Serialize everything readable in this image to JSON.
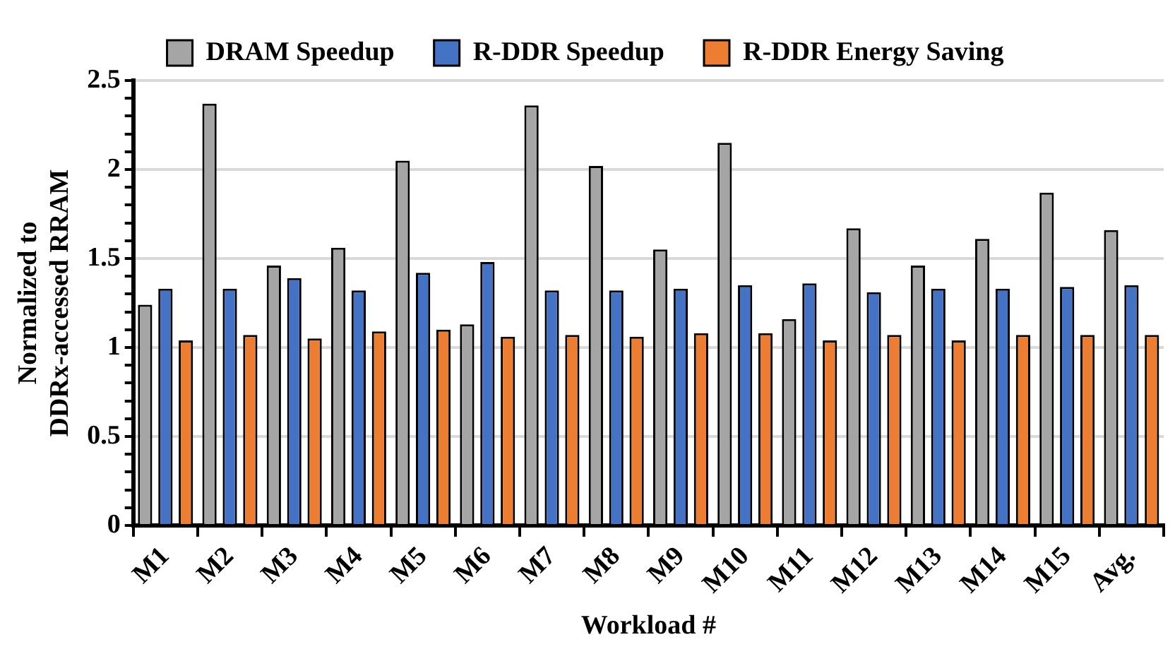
{
  "chart_data": {
    "type": "bar",
    "xlabel": "Workload #",
    "ylabel": "Normalized to\nDDRx-accessed RRAM",
    "categories": [
      "M1",
      "M2",
      "M3",
      "M4",
      "M5",
      "M6",
      "M7",
      "M8",
      "M9",
      "M10",
      "M11",
      "M12",
      "M13",
      "M14",
      "M15",
      "Avg."
    ],
    "series": [
      {
        "name": "DRAM Speedup",
        "color": "#a5a5a5",
        "values": [
          1.24,
          2.37,
          1.46,
          1.56,
          2.05,
          1.13,
          2.36,
          2.02,
          1.55,
          2.15,
          1.16,
          1.67,
          1.46,
          1.61,
          1.87,
          1.66
        ]
      },
      {
        "name": "R-DDR Speedup",
        "color": "#4472c4",
        "values": [
          1.33,
          1.33,
          1.39,
          1.32,
          1.42,
          1.48,
          1.32,
          1.32,
          1.33,
          1.35,
          1.36,
          1.31,
          1.33,
          1.33,
          1.34,
          1.35
        ]
      },
      {
        "name": "R-DDR Energy Saving",
        "color": "#ed7d31",
        "values": [
          1.04,
          1.07,
          1.05,
          1.09,
          1.1,
          1.06,
          1.07,
          1.06,
          1.08,
          1.08,
          1.04,
          1.07,
          1.04,
          1.07,
          1.07,
          1.07
        ]
      }
    ],
    "ylim": [
      0,
      2.5
    ],
    "yticks": [
      0,
      {
        "value": 0.1,
        "label": null
      },
      {
        "value": 0.2,
        "label": null
      },
      {
        "value": 0.3,
        "label": null
      },
      {
        "value": 0.4,
        "label": null
      },
      0.5,
      {
        "value": 0.6,
        "label": null
      },
      {
        "value": 0.7,
        "label": null
      },
      {
        "value": 0.8,
        "label": null
      },
      {
        "value": 0.9,
        "label": null
      },
      1,
      {
        "value": 1.1,
        "label": null
      },
      {
        "value": 1.2,
        "label": null
      },
      {
        "value": 1.3,
        "label": null
      },
      {
        "value": 1.4,
        "label": null
      },
      1.5,
      {
        "value": 1.6,
        "label": null
      },
      {
        "value": 1.7,
        "label": null
      },
      {
        "value": 1.8,
        "label": null
      },
      {
        "value": 1.9,
        "label": null
      },
      2,
      {
        "value": 2.1,
        "label": null
      },
      {
        "value": 2.2,
        "label": null
      },
      {
        "value": 2.3,
        "label": null
      },
      {
        "value": 2.4,
        "label": null
      },
      2.5
    ],
    "grid": "y",
    "legend": "top"
  }
}
